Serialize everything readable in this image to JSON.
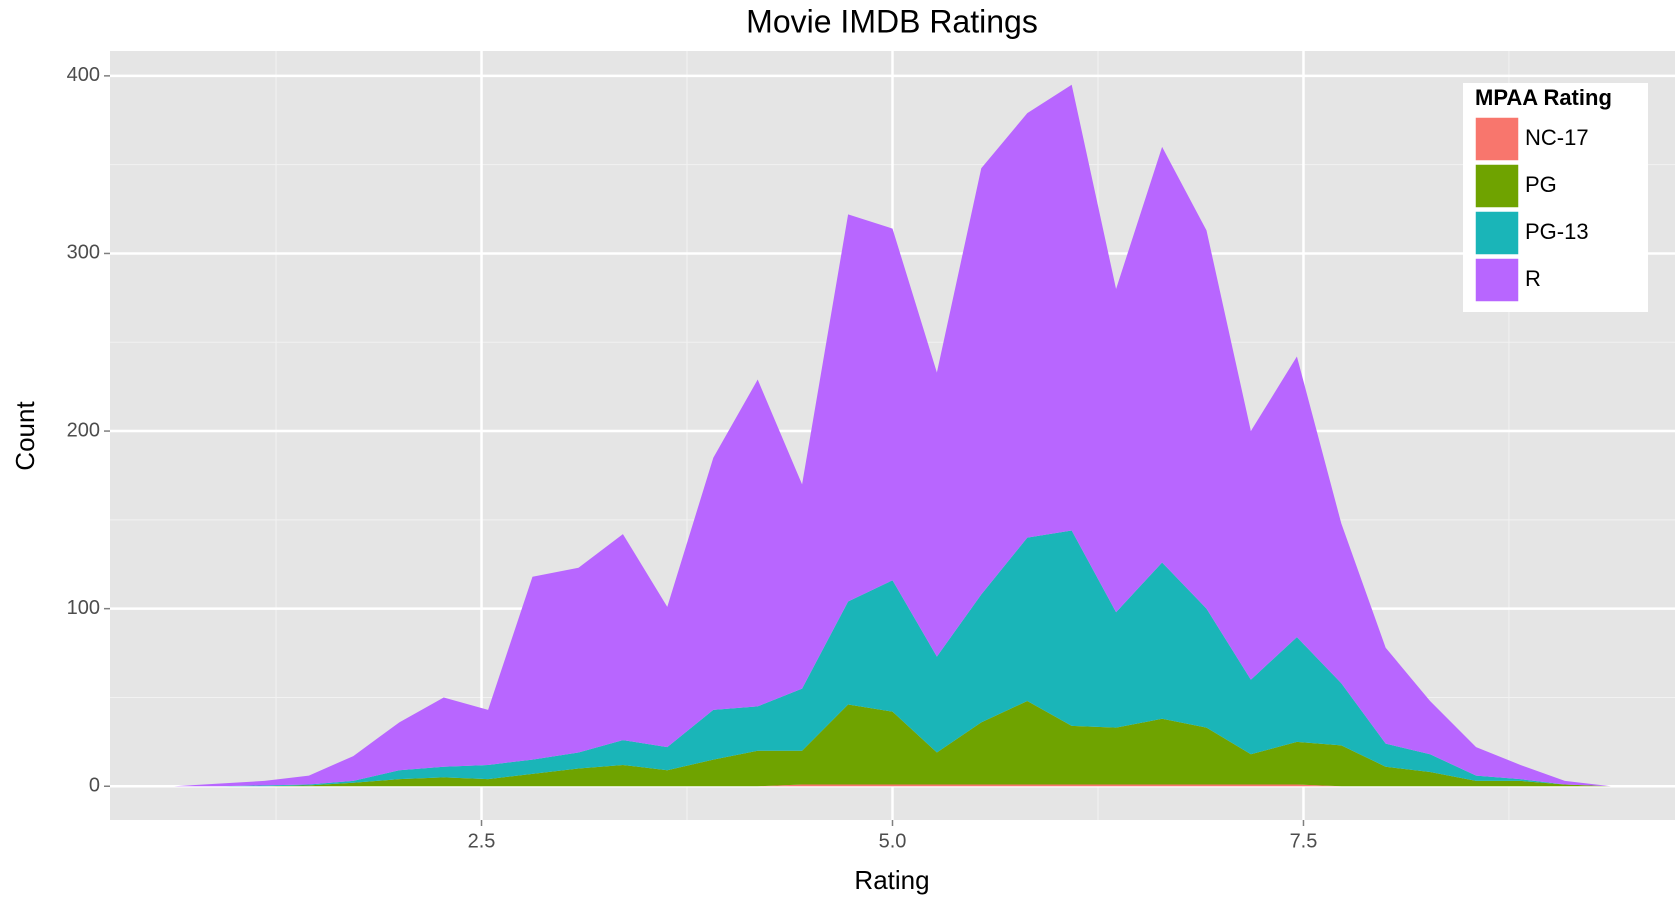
{
  "chart_data": {
    "type": "stacked_area",
    "title": "Movie IMDB Ratings",
    "x_label": "Rating",
    "y_label": "Count",
    "legend_title": "MPAA Rating",
    "legend_position": "top-right",
    "grid": true,
    "x": [
      0.63,
      0.9,
      1.18,
      1.45,
      1.72,
      2.0,
      2.27,
      2.54,
      2.81,
      3.09,
      3.36,
      3.63,
      3.91,
      4.18,
      4.45,
      4.73,
      5.0,
      5.27,
      5.54,
      5.82,
      6.09,
      6.36,
      6.64,
      6.91,
      7.18,
      7.46,
      7.73,
      8.0,
      8.27,
      8.55,
      8.82,
      9.09,
      9.37
    ],
    "series": [
      {
        "name": "NC-17",
        "color": "#F8766D",
        "values": [
          0,
          0,
          0,
          0,
          0,
          0,
          0,
          0,
          0,
          0,
          0,
          0,
          0,
          0,
          1,
          1,
          1,
          1,
          1,
          1,
          1,
          1,
          1,
          1,
          1,
          1,
          0,
          0,
          0,
          0,
          0,
          0,
          0
        ]
      },
      {
        "name": "PG",
        "color": "#6fa300",
        "values": [
          0,
          0,
          0,
          0.5,
          2,
          4,
          5,
          4,
          7,
          10,
          12,
          9,
          15,
          20,
          19,
          45,
          41,
          18,
          35,
          47,
          33,
          32,
          37,
          32,
          17,
          24,
          23,
          11,
          8,
          3,
          3,
          1,
          0
        ]
      },
      {
        "name": "PG-13",
        "color": "#1ab5b8",
        "values": [
          0,
          0,
          0.5,
          0.5,
          1,
          5,
          6,
          8,
          8,
          9,
          14,
          13,
          28,
          25,
          35,
          58,
          74,
          54,
          72,
          92,
          110,
          65,
          88,
          67,
          42,
          59,
          35,
          13,
          10,
          3,
          1,
          0,
          0
        ]
      },
      {
        "name": "R",
        "color": "#b866ff",
        "values": [
          0,
          1.5,
          2.5,
          5,
          14,
          27,
          39,
          31,
          103,
          104,
          116,
          79,
          142,
          184,
          115,
          218,
          198,
          160,
          240,
          239,
          251,
          182,
          234,
          213,
          140,
          158,
          90,
          54,
          30,
          16,
          8,
          2,
          0
        ]
      }
    ],
    "xlim": [
      0.24,
      9.76
    ],
    "xticks": [
      2.5,
      {
        "value": 5,
        "label": "5.0"
      },
      7.5
    ],
    "x_minor_ticks": [
      1.25,
      3.75,
      6.25,
      8.75
    ],
    "ylim": [
      -19,
      414
    ],
    "yticks": [
      0,
      100,
      200,
      300,
      400
    ],
    "y_minor_ticks": [
      50,
      150,
      250,
      350
    ]
  }
}
